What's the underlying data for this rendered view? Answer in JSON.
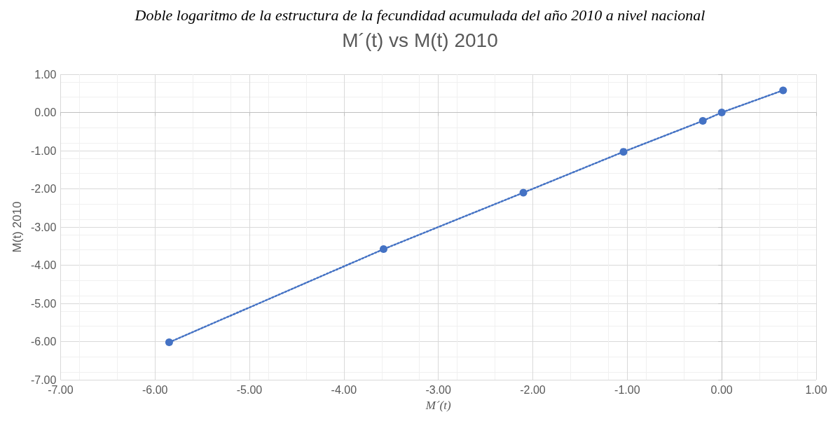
{
  "chart_data": {
    "type": "line",
    "title": "M´(t) vs M(t) 2010",
    "xlabel": "M´(t)",
    "ylabel": "M(t) 2010",
    "annotations": [
      "Doble logaritmo de la estructura de la fecundidad acumulada del año 2010 a nivel nacional"
    ],
    "x": [
      -5.85,
      -3.58,
      -2.1,
      -1.04,
      -0.2,
      0,
      0.65
    ],
    "series": [
      {
        "color": "#4472c4",
        "values": [
          -6.02,
          -3.58,
          -2.1,
          -1.03,
          -0.22,
          0,
          0.58
        ]
      }
    ],
    "xlim": [
      -7,
      1
    ],
    "ylim": [
      -7,
      1
    ],
    "xticks": [
      {
        "value": -7,
        "label": "-7.00"
      },
      {
        "value": -6,
        "label": "-6.00"
      },
      {
        "value": -5,
        "label": "-5.00"
      },
      {
        "value": -4,
        "label": "-4.00"
      },
      {
        "value": -3,
        "label": "-3.00"
      },
      {
        "value": -2,
        "label": "-2.00"
      },
      {
        "value": -1,
        "label": "-1.00"
      },
      {
        "value": 0,
        "label": "0.00"
      },
      {
        "value": 1,
        "label": "1.00"
      }
    ],
    "yticks": [
      {
        "value": -7,
        "label": "-7.00"
      },
      {
        "value": -6,
        "label": "-6.00"
      },
      {
        "value": -5,
        "label": "-5.00"
      },
      {
        "value": -4,
        "label": "-4.00"
      },
      {
        "value": -3,
        "label": "-3.00"
      },
      {
        "value": -2,
        "label": "-2.00"
      },
      {
        "value": -1,
        "label": "-1.00"
      },
      {
        "value": 0,
        "label": "0.00"
      },
      {
        "value": 1,
        "label": "1.00"
      }
    ],
    "grid": true,
    "marker": "circle",
    "line_style": "dotted"
  }
}
